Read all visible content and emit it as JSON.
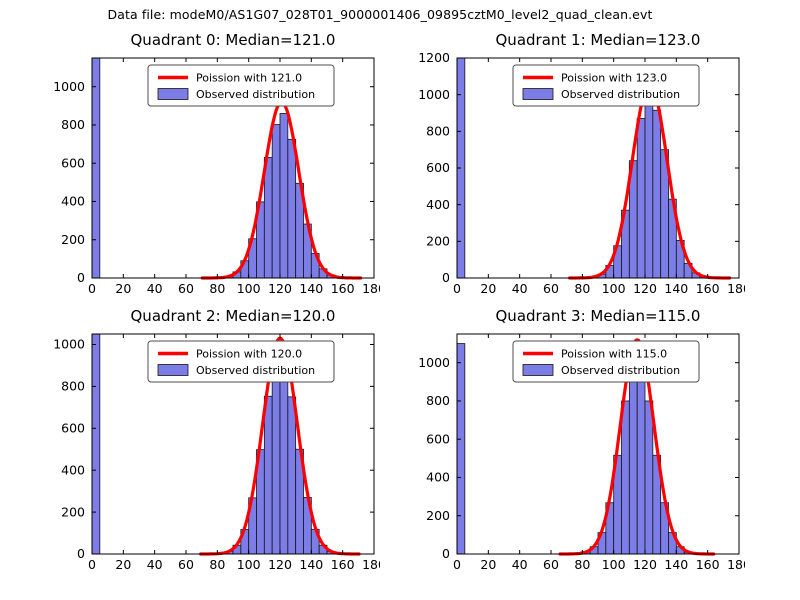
{
  "figure": {
    "title": "Data file: modeM0/AS1G07_028T01_9000001406_09895cztM0_level2_quad_clean.evt"
  },
  "colors": {
    "background": "#ffffff",
    "bar_fill": "#7d7de8",
    "bar_edge": "#151515",
    "curve": "#ff0000",
    "axis": "#000000",
    "legend_border": "#4d4d4d",
    "text": "#000000"
  },
  "chart_data": [
    {
      "type": "bar",
      "title": "Quadrant 0: Median=121.0",
      "median": 121.0,
      "legend": {
        "line_label": "Poission with 121.0",
        "patch_label": "Observed distribution",
        "position": "upper center"
      },
      "xlim": [
        0,
        180
      ],
      "ylim": [
        0,
        1150
      ],
      "xticks": [
        0,
        20,
        40,
        60,
        80,
        100,
        120,
        140,
        160,
        180
      ],
      "yticks": [
        0,
        200,
        400,
        600,
        800,
        1000
      ],
      "bin_width": 5,
      "bars": [
        [
          0,
          1150
        ],
        [
          80,
          3
        ],
        [
          85,
          10
        ],
        [
          90,
          32
        ],
        [
          95,
          90
        ],
        [
          100,
          205
        ],
        [
          105,
          398
        ],
        [
          110,
          630
        ],
        [
          115,
          802
        ],
        [
          120,
          860
        ],
        [
          125,
          725
        ],
        [
          130,
          495
        ],
        [
          135,
          282
        ],
        [
          140,
          128
        ],
        [
          145,
          48
        ],
        [
          150,
          16
        ],
        [
          155,
          5
        ],
        [
          160,
          2
        ]
      ],
      "curve": {
        "type": "gaussian",
        "mean": 121.0,
        "sigma": 11.0,
        "peak": 920
      }
    },
    {
      "type": "bar",
      "title": "Quadrant 1: Median=123.0",
      "median": 123.0,
      "legend": {
        "line_label": "Poission with 123.0",
        "patch_label": "Observed distribution",
        "position": "upper center"
      },
      "xlim": [
        0,
        180
      ],
      "ylim": [
        0,
        1200
      ],
      "xticks": [
        0,
        20,
        40,
        60,
        80,
        100,
        120,
        140,
        160,
        180
      ],
      "yticks": [
        0,
        200,
        400,
        600,
        800,
        1000,
        1200
      ],
      "bin_width": 5,
      "bars": [
        [
          0,
          1200
        ],
        [
          80,
          2
        ],
        [
          85,
          6
        ],
        [
          90,
          21
        ],
        [
          95,
          68
        ],
        [
          100,
          176
        ],
        [
          105,
          370
        ],
        [
          110,
          640
        ],
        [
          115,
          870
        ],
        [
          120,
          1000
        ],
        [
          125,
          915
        ],
        [
          130,
          700
        ],
        [
          135,
          430
        ],
        [
          140,
          205
        ],
        [
          145,
          80
        ],
        [
          150,
          28
        ],
        [
          155,
          8
        ],
        [
          160,
          2
        ]
      ],
      "curve": {
        "type": "gaussian",
        "mean": 123.0,
        "sigma": 11.1,
        "peak": 1060
      }
    },
    {
      "type": "bar",
      "title": "Quadrant 2: Median=120.0",
      "median": 120.0,
      "legend": {
        "line_label": "Poission with 120.0",
        "patch_label": "Observed distribution",
        "position": "upper center"
      },
      "xlim": [
        0,
        180
      ],
      "ylim": [
        0,
        1050
      ],
      "xticks": [
        0,
        20,
        40,
        60,
        80,
        100,
        120,
        140,
        160,
        180
      ],
      "yticks": [
        0,
        200,
        400,
        600,
        800,
        1000
      ],
      "bin_width": 5,
      "bars": [
        [
          0,
          1050
        ],
        [
          80,
          3
        ],
        [
          85,
          12
        ],
        [
          90,
          42
        ],
        [
          95,
          117
        ],
        [
          100,
          268
        ],
        [
          105,
          498
        ],
        [
          110,
          753
        ],
        [
          115,
          926
        ],
        [
          120,
          940
        ],
        [
          125,
          750
        ],
        [
          130,
          500
        ],
        [
          135,
          270
        ],
        [
          140,
          118
        ],
        [
          145,
          42
        ],
        [
          150,
          12
        ],
        [
          155,
          3
        ],
        [
          160,
          1
        ]
      ],
      "curve": {
        "type": "gaussian",
        "mean": 120.0,
        "sigma": 11.0,
        "peak": 1030
      }
    },
    {
      "type": "bar",
      "title": "Quadrant 3: Median=115.0",
      "median": 115.0,
      "legend": {
        "line_label": "Poission with 115.0",
        "patch_label": "Observed distribution",
        "position": "upper center"
      },
      "xlim": [
        0,
        180
      ],
      "ylim": [
        0,
        1150
      ],
      "xticks": [
        0,
        20,
        40,
        60,
        80,
        100,
        120,
        140,
        160,
        180
      ],
      "yticks": [
        0,
        200,
        400,
        600,
        800,
        1000
      ],
      "bin_width": 5,
      "bars": [
        [
          0,
          1100
        ],
        [
          75,
          3
        ],
        [
          80,
          10
        ],
        [
          85,
          38
        ],
        [
          90,
          112
        ],
        [
          95,
          268
        ],
        [
          100,
          516
        ],
        [
          105,
          800
        ],
        [
          110,
          990
        ],
        [
          115,
          1000
        ],
        [
          120,
          800
        ],
        [
          125,
          516
        ],
        [
          130,
          268
        ],
        [
          135,
          112
        ],
        [
          140,
          38
        ],
        [
          145,
          10
        ],
        [
          150,
          3
        ],
        [
          155,
          1
        ]
      ],
      "curve": {
        "type": "gaussian",
        "mean": 115.0,
        "sigma": 10.7,
        "peak": 1120
      }
    }
  ]
}
